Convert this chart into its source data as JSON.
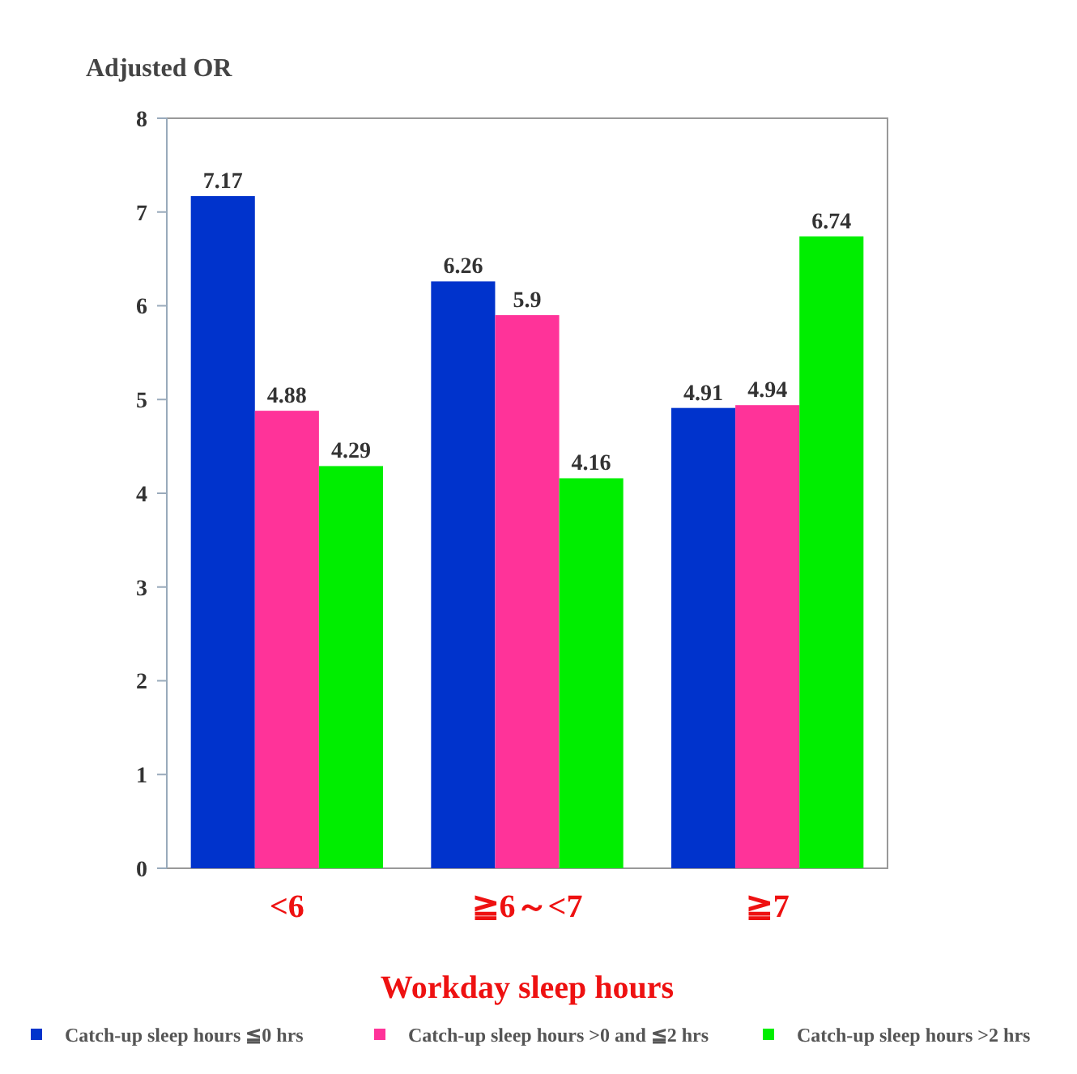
{
  "chart_data": {
    "type": "bar",
    "ylabel": "Adjusted OR",
    "xlabel": "Workday sleep hours",
    "categories": [
      "<6",
      "≧6～<7",
      "≧7"
    ],
    "series": [
      {
        "name": "Catch-up sleep hours ≦0 hrs",
        "color": "#0033cc",
        "values": [
          7.17,
          6.26,
          4.91
        ]
      },
      {
        "name": "Catch-up sleep hours >0 and ≦2 hrs",
        "color": "#ff3399",
        "values": [
          4.88,
          5.9,
          4.94
        ]
      },
      {
        "name": "Catch-up sleep hours >2 hrs",
        "color": "#00ee00",
        "values": [
          4.29,
          4.16,
          6.74
        ]
      }
    ],
    "ylim": [
      0,
      8
    ],
    "yticks": [
      0,
      1,
      2,
      3,
      4,
      5,
      6,
      7,
      8
    ],
    "data_labels": true,
    "legend": "bottom",
    "grid": false
  }
}
